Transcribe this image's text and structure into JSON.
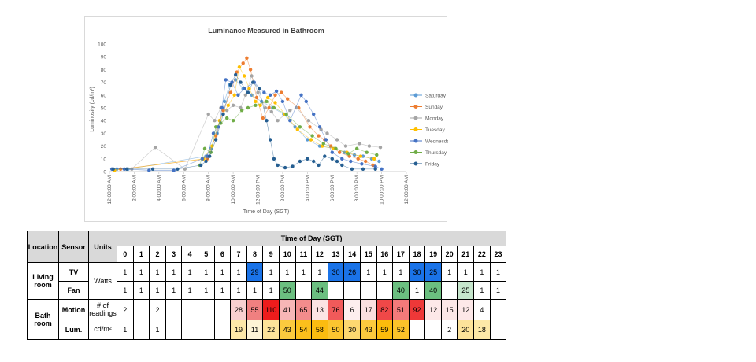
{
  "chart_data": {
    "type": "scatter",
    "title": "Luminance Measured in Bathroom",
    "xlabel": "Time of Day (SGT)",
    "ylabel": "Luminosity (cd/m²)",
    "ylim": [
      0,
      100
    ],
    "yticks": [
      0,
      10,
      20,
      30,
      40,
      50,
      60,
      70,
      80,
      90,
      100
    ],
    "xlim": [
      0,
      24
    ],
    "xticks": [
      {
        "hour": 0,
        "label": "12:00:00 AM"
      },
      {
        "hour": 2,
        "label": "2:00:00 AM"
      },
      {
        "hour": 4,
        "label": "4:00:00 AM"
      },
      {
        "hour": 6,
        "label": "6:00:00 AM"
      },
      {
        "hour": 8,
        "label": "8:00:00 AM"
      },
      {
        "hour": 10,
        "label": "10:00:00 AM"
      },
      {
        "hour": 12,
        "label": "12:00:00 PM"
      },
      {
        "hour": 14,
        "label": "2:00:00 PM"
      },
      {
        "hour": 16,
        "label": "4:00:00 PM"
      },
      {
        "hour": 18,
        "label": "6:00:00 PM"
      },
      {
        "hour": 20,
        "label": "8:00:00 PM"
      },
      {
        "hour": 22,
        "label": "10:00:00 PM"
      },
      {
        "hour": 24,
        "label": "12:00:00 AM"
      }
    ],
    "grid": false,
    "legend": "right",
    "series": [
      {
        "name": "Saturday",
        "color": "#5b9bd5",
        "points": [
          [
            0.6,
            2
          ],
          [
            1.5,
            2
          ],
          [
            7.8,
            12
          ],
          [
            8.2,
            18
          ],
          [
            8.7,
            30
          ],
          [
            9.3,
            55
          ],
          [
            9.7,
            68
          ],
          [
            10.2,
            72
          ],
          [
            10.8,
            65
          ],
          [
            11.5,
            60
          ],
          [
            12.3,
            55
          ],
          [
            13.2,
            50
          ],
          [
            14.1,
            45
          ],
          [
            15.0,
            35
          ],
          [
            16.0,
            25
          ],
          [
            17.0,
            20
          ],
          [
            18.2,
            18
          ],
          [
            19.0,
            15
          ],
          [
            19.8,
            13
          ],
          [
            20.5,
            12
          ],
          [
            21.2,
            10
          ],
          [
            21.8,
            8
          ]
        ]
      },
      {
        "name": "Sunday",
        "color": "#ed7d31",
        "points": [
          [
            0.9,
            2
          ],
          [
            7.9,
            10
          ],
          [
            8.6,
            28
          ],
          [
            9.2,
            48
          ],
          [
            9.8,
            62
          ],
          [
            10.3,
            78
          ],
          [
            10.8,
            85
          ],
          [
            11.1,
            89
          ],
          [
            11.4,
            80
          ],
          [
            11.9,
            58
          ],
          [
            12.4,
            42
          ],
          [
            12.9,
            50
          ],
          [
            13.4,
            60
          ],
          [
            13.9,
            62
          ],
          [
            14.4,
            57
          ],
          [
            15.3,
            50
          ],
          [
            16.2,
            35
          ],
          [
            16.9,
            28
          ],
          [
            17.4,
            25
          ],
          [
            17.9,
            20
          ],
          [
            18.6,
            15
          ],
          [
            19.4,
            12
          ],
          [
            20.1,
            10
          ],
          [
            20.7,
            8
          ],
          [
            21.3,
            5
          ]
        ]
      },
      {
        "name": "Monday",
        "color": "#a5a5a5",
        "points": [
          [
            1.8,
            2
          ],
          [
            3.7,
            19
          ],
          [
            6.1,
            2
          ],
          [
            8.0,
            45
          ],
          [
            8.5,
            40
          ],
          [
            9.0,
            50
          ],
          [
            9.5,
            48
          ],
          [
            10.0,
            52
          ],
          [
            10.6,
            50
          ],
          [
            11.0,
            60
          ],
          [
            11.5,
            75
          ],
          [
            12.0,
            62
          ],
          [
            12.6,
            50
          ],
          [
            13.1,
            47
          ],
          [
            13.6,
            40
          ],
          [
            14.6,
            48
          ],
          [
            15.1,
            50
          ],
          [
            16.1,
            40
          ],
          [
            17.1,
            33
          ],
          [
            17.6,
            30
          ],
          [
            18.4,
            25
          ],
          [
            19.1,
            20
          ],
          [
            20.2,
            22
          ],
          [
            21.0,
            20
          ],
          [
            21.9,
            19
          ]
        ]
      },
      {
        "name": "Tuesday",
        "color": "#ffc000",
        "points": [
          [
            0.4,
            1
          ],
          [
            7.6,
            10
          ],
          [
            8.3,
            20
          ],
          [
            8.9,
            40
          ],
          [
            9.6,
            52
          ],
          [
            10.1,
            60
          ],
          [
            10.5,
            82
          ],
          [
            10.9,
            75
          ],
          [
            11.3,
            65
          ],
          [
            11.8,
            55
          ],
          [
            12.2,
            52
          ],
          [
            12.8,
            58
          ],
          [
            13.4,
            54
          ],
          [
            14.2,
            45
          ],
          [
            15.2,
            33
          ],
          [
            16.3,
            25
          ],
          [
            17.2,
            20
          ],
          [
            18.1,
            18
          ],
          [
            19.2,
            15
          ],
          [
            20.3,
            12
          ],
          [
            21.4,
            10
          ]
        ]
      },
      {
        "name": "Wednesday",
        "color": "#4472c4",
        "points": [
          [
            0.2,
            2
          ],
          [
            1.2,
            2
          ],
          [
            3.2,
            1
          ],
          [
            5.2,
            1
          ],
          [
            7.5,
            10
          ],
          [
            7.9,
            12
          ],
          [
            8.4,
            30
          ],
          [
            8.8,
            35
          ],
          [
            9.1,
            50
          ],
          [
            9.4,
            72
          ],
          [
            9.9,
            70
          ],
          [
            10.4,
            60
          ],
          [
            10.9,
            65
          ],
          [
            11.7,
            70
          ],
          [
            12.5,
            62
          ],
          [
            13.0,
            60
          ],
          [
            13.5,
            63
          ],
          [
            14.0,
            55
          ],
          [
            14.6,
            40
          ],
          [
            15.5,
            60
          ],
          [
            15.9,
            55
          ],
          [
            16.5,
            45
          ],
          [
            17.0,
            35
          ],
          [
            17.5,
            25
          ],
          [
            18.0,
            15
          ],
          [
            18.8,
            10
          ],
          [
            19.5,
            8
          ],
          [
            20.4,
            6
          ],
          [
            21.5,
            4
          ],
          [
            22.0,
            2
          ]
        ]
      },
      {
        "name": "Thursday",
        "color": "#70ad47",
        "points": [
          [
            7.3,
            5
          ],
          [
            7.7,
            18
          ],
          [
            8.2,
            15
          ],
          [
            8.6,
            35
          ],
          [
            9.0,
            38
          ],
          [
            9.5,
            42
          ],
          [
            10.0,
            40
          ],
          [
            10.7,
            48
          ],
          [
            11.2,
            50
          ],
          [
            11.8,
            52
          ],
          [
            12.7,
            55
          ],
          [
            13.3,
            50
          ],
          [
            14.3,
            45
          ],
          [
            15.4,
            35
          ],
          [
            16.4,
            28
          ],
          [
            17.3,
            22
          ],
          [
            18.3,
            18
          ],
          [
            19.3,
            14
          ],
          [
            20.0,
            18
          ],
          [
            20.8,
            15
          ],
          [
            21.6,
            13
          ]
        ]
      },
      {
        "name": "Friday",
        "color": "#255e91",
        "points": [
          [
            0.3,
            2
          ],
          [
            1.4,
            2
          ],
          [
            3.5,
            2
          ],
          [
            5.5,
            2
          ],
          [
            7.4,
            5
          ],
          [
            7.8,
            8
          ],
          [
            8.1,
            12
          ],
          [
            8.6,
            25
          ],
          [
            9.2,
            45
          ],
          [
            9.8,
            68
          ],
          [
            10.2,
            76
          ],
          [
            10.6,
            70
          ],
          [
            11.2,
            62
          ],
          [
            11.6,
            70
          ],
          [
            12.1,
            65
          ],
          [
            12.7,
            40
          ],
          [
            13.0,
            25
          ],
          [
            13.3,
            10
          ],
          [
            13.6,
            5
          ],
          [
            14.2,
            3
          ],
          [
            14.8,
            4
          ],
          [
            15.4,
            8
          ],
          [
            16.0,
            10
          ],
          [
            16.5,
            8
          ],
          [
            16.9,
            5
          ],
          [
            17.4,
            12
          ],
          [
            18.0,
            10
          ],
          [
            18.4,
            8
          ],
          [
            18.8,
            5
          ],
          [
            19.6,
            2
          ],
          [
            20.5,
            2
          ],
          [
            21.5,
            2
          ]
        ]
      }
    ]
  },
  "table": {
    "headers": {
      "location": "Location",
      "sensor": "Sensor",
      "units": "Units",
      "time": "Time of Day (SGT)"
    },
    "hours": [
      "0",
      "1",
      "2",
      "3",
      "4",
      "5",
      "6",
      "7",
      "8",
      "9",
      "10",
      "11",
      "12",
      "13",
      "14",
      "15",
      "16",
      "17",
      "18",
      "19",
      "20",
      "21",
      "22",
      "23"
    ],
    "groups": [
      {
        "location": "Living room",
        "units": "Watts",
        "rows": [
          {
            "sensor": "TV",
            "cells": [
              "1",
              "1",
              "1",
              "1",
              "1",
              "1",
              "1",
              "1",
              "29",
              "1",
              "1",
              "1",
              "1",
              "30",
              "26",
              "1",
              "1",
              "1",
              "30",
              "25",
              "1",
              "1",
              "1",
              "1"
            ],
            "colors": [
              "",
              "",
              "",
              "",
              "",
              "",
              "",
              "",
              "#1a73e8",
              "",
              "",
              "",
              "",
              "#1a73e8",
              "#1a73e8",
              "",
              "",
              "",
              "#1a73e8",
              "#1a73e8",
              "",
              "",
              "",
              ""
            ]
          },
          {
            "sensor": "Fan",
            "cells": [
              "1",
              "1",
              "1",
              "1",
              "1",
              "1",
              "1",
              "1",
              "1",
              "1",
              "50",
              "",
              "44",
              "",
              "",
              "",
              "",
              "40",
              "1",
              "40",
              "",
              "25",
              "1",
              "1"
            ],
            "colors": [
              "",
              "",
              "",
              "",
              "",
              "",
              "",
              "",
              "",
              "",
              "#6bbf80",
              "",
              "#6bbf80",
              "",
              "",
              "",
              "",
              "#6bbf80",
              "",
              "#6bbf80",
              "",
              "#c6e6cc",
              "",
              ""
            ]
          }
        ]
      },
      {
        "location": "Bath room",
        "units": "",
        "rows": [
          {
            "sensor": "Motion",
            "units": "# of readings",
            "cells": [
              "2",
              "",
              "2",
              "",
              "",
              "",
              "",
              "28",
              "55",
              "110",
              "41",
              "65",
              "13",
              "76",
              "6",
              "17",
              "82",
              "51",
              "92",
              "12",
              "15",
              "12",
              "4",
              ""
            ],
            "colors": [
              "",
              "",
              "",
              "",
              "",
              "",
              "",
              "#f8d0d0",
              "#f08080",
              "#ee1c1c",
              "#f7b6b6",
              "#f38c8c",
              "#fce4e4",
              "#f15a5a",
              "#fdeeee",
              "#fbe0e0",
              "#f04848",
              "#f37a7a",
              "#ee3838",
              "#fde8e8",
              "#fce8e8",
              "#fde8e8",
              "",
              ""
            ]
          },
          {
            "sensor": "Lum.",
            "units": "cd/m²",
            "cells": [
              "1",
              "",
              "1",
              "",
              "",
              "",
              "",
              "19",
              "11",
              "22",
              "43",
              "54",
              "58",
              "50",
              "30",
              "43",
              "59",
              "52",
              "",
              "",
              "2",
              "20",
              "18",
              ""
            ],
            "colors": [
              "",
              "",
              "",
              "",
              "",
              "",
              "",
              "#fde8a8",
              "#fef4d6",
              "#fde39a",
              "#fbca3e",
              "#fbbf1c",
              "#fbbc10",
              "#fbc530",
              "#fdd870",
              "#fbca3e",
              "#fbbb0c",
              "#fbc32a",
              "",
              "",
              "",
              "#fde39a",
              "#fde8a8",
              ""
            ]
          }
        ]
      }
    ]
  }
}
